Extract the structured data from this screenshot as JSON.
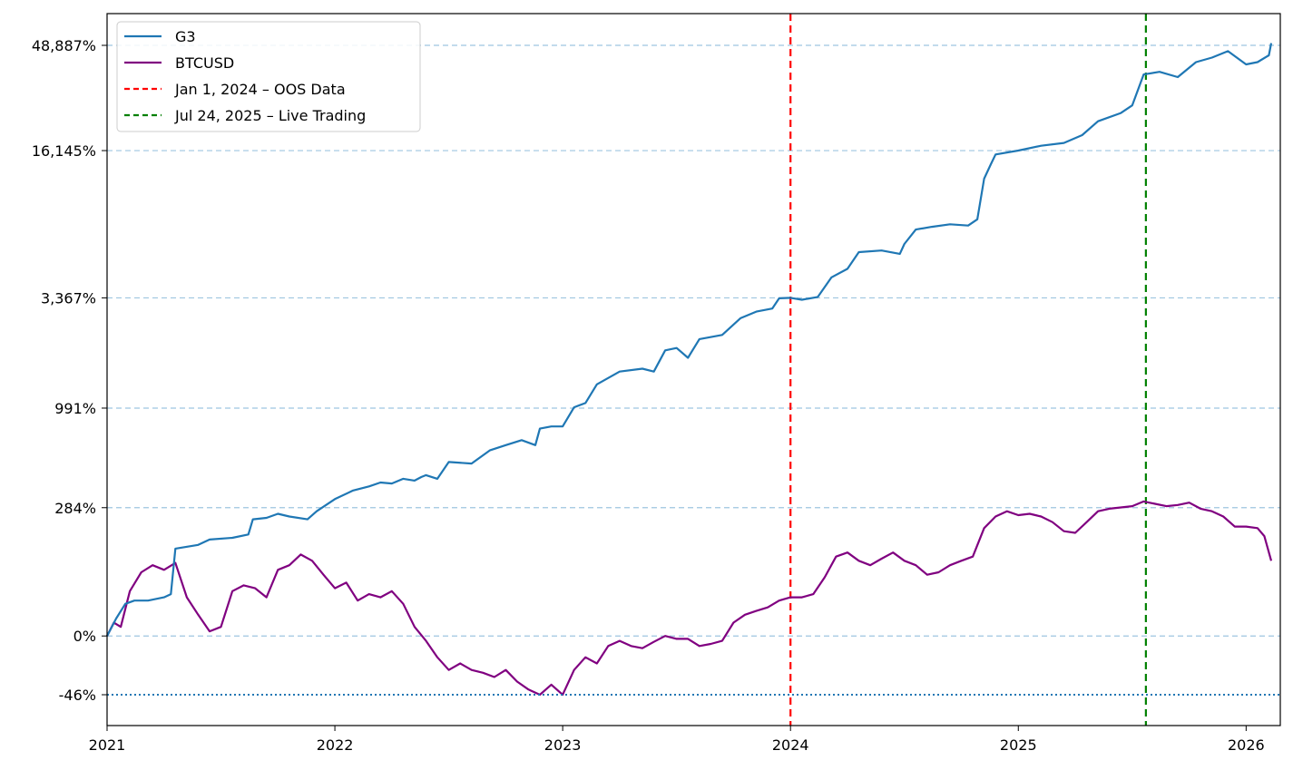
{
  "chart_data": {
    "type": "line",
    "title": "",
    "xlabel": "",
    "ylabel": "",
    "y_scale": "log(1 + return)",
    "x_range": [
      2021.0,
      2026.15
    ],
    "y_range_pct": [
      -55,
      80000
    ],
    "x_ticks": [
      {
        "value": 2021,
        "label": "2021"
      },
      {
        "value": 2022,
        "label": "2022"
      },
      {
        "value": 2023,
        "label": "2023"
      },
      {
        "value": 2024,
        "label": "2024"
      },
      {
        "value": 2025,
        "label": "2025"
      },
      {
        "value": 2026,
        "label": "2026"
      }
    ],
    "y_ticks": [
      {
        "value": 48887,
        "label": "48,887%"
      },
      {
        "value": 16145,
        "label": "16,145%"
      },
      {
        "value": 3367,
        "label": "3,367%"
      },
      {
        "value": 991,
        "label": "991%"
      },
      {
        "value": 284,
        "label": "284%"
      },
      {
        "value": 0,
        "label": "0%"
      },
      {
        "value": -46,
        "label": "-46%"
      }
    ],
    "horizontal_reference": {
      "value": -46,
      "style": "dotted",
      "color": "#1f77b4"
    },
    "vertical_markers": [
      {
        "x": 2024.0,
        "label": "Jan 1, 2024 – OOS Data",
        "color": "#ff0000",
        "style": "dashed"
      },
      {
        "x": 2025.56,
        "label": "Jul 24, 2025 – Live Trading",
        "color": "#008000",
        "style": "dashed"
      }
    ],
    "legend_position": "top-left",
    "series": [
      {
        "name": "G3",
        "color": "#1f77b4",
        "points": [
          [
            2021.0,
            0
          ],
          [
            2021.04,
            20
          ],
          [
            2021.08,
            40
          ],
          [
            2021.12,
            45
          ],
          [
            2021.18,
            45
          ],
          [
            2021.25,
            50
          ],
          [
            2021.28,
            55
          ],
          [
            2021.3,
            150
          ],
          [
            2021.4,
            160
          ],
          [
            2021.45,
            175
          ],
          [
            2021.55,
            180
          ],
          [
            2021.62,
            190
          ],
          [
            2021.64,
            240
          ],
          [
            2021.7,
            245
          ],
          [
            2021.75,
            260
          ],
          [
            2021.8,
            250
          ],
          [
            2021.88,
            240
          ],
          [
            2021.92,
            270
          ],
          [
            2022.0,
            320
          ],
          [
            2022.08,
            360
          ],
          [
            2022.15,
            380
          ],
          [
            2022.2,
            400
          ],
          [
            2022.25,
            395
          ],
          [
            2022.3,
            420
          ],
          [
            2022.35,
            410
          ],
          [
            2022.38,
            430
          ],
          [
            2022.4,
            440
          ],
          [
            2022.45,
            420
          ],
          [
            2022.5,
            520
          ],
          [
            2022.6,
            510
          ],
          [
            2022.68,
            600
          ],
          [
            2022.75,
            640
          ],
          [
            2022.82,
            680
          ],
          [
            2022.88,
            640
          ],
          [
            2022.9,
            780
          ],
          [
            2022.95,
            800
          ],
          [
            2023.0,
            800
          ],
          [
            2023.05,
            1000
          ],
          [
            2023.1,
            1050
          ],
          [
            2023.15,
            1300
          ],
          [
            2023.25,
            1500
          ],
          [
            2023.35,
            1550
          ],
          [
            2023.4,
            1500
          ],
          [
            2023.45,
            1900
          ],
          [
            2023.5,
            1950
          ],
          [
            2023.55,
            1750
          ],
          [
            2023.6,
            2150
          ],
          [
            2023.7,
            2250
          ],
          [
            2023.78,
            2700
          ],
          [
            2023.85,
            2900
          ],
          [
            2023.92,
            3000
          ],
          [
            2023.95,
            3350
          ],
          [
            2024.0,
            3367
          ],
          [
            2024.05,
            3300
          ],
          [
            2024.12,
            3400
          ],
          [
            2024.18,
            4200
          ],
          [
            2024.25,
            4600
          ],
          [
            2024.3,
            5500
          ],
          [
            2024.4,
            5600
          ],
          [
            2024.48,
            5400
          ],
          [
            2024.5,
            6000
          ],
          [
            2024.55,
            7000
          ],
          [
            2024.62,
            7200
          ],
          [
            2024.7,
            7400
          ],
          [
            2024.78,
            7300
          ],
          [
            2024.82,
            7800
          ],
          [
            2024.85,
            12000
          ],
          [
            2024.88,
            14000
          ],
          [
            2024.9,
            15500
          ],
          [
            2025.0,
            16145
          ],
          [
            2025.1,
            17000
          ],
          [
            2025.2,
            17500
          ],
          [
            2025.28,
            19000
          ],
          [
            2025.35,
            22000
          ],
          [
            2025.45,
            24000
          ],
          [
            2025.5,
            26000
          ],
          [
            2025.55,
            36000
          ],
          [
            2025.62,
            37000
          ],
          [
            2025.7,
            35000
          ],
          [
            2025.78,
            41000
          ],
          [
            2025.85,
            43000
          ],
          [
            2025.92,
            46000
          ],
          [
            2026.0,
            40000
          ],
          [
            2026.05,
            41000
          ],
          [
            2026.1,
            44000
          ],
          [
            2026.11,
            50000
          ]
        ]
      },
      {
        "name": "BTCUSD",
        "color": "#800080",
        "points": [
          [
            2021.0,
            0
          ],
          [
            2021.03,
            15
          ],
          [
            2021.06,
            10
          ],
          [
            2021.1,
            60
          ],
          [
            2021.15,
            95
          ],
          [
            2021.2,
            110
          ],
          [
            2021.25,
            100
          ],
          [
            2021.3,
            115
          ],
          [
            2021.35,
            50
          ],
          [
            2021.4,
            25
          ],
          [
            2021.45,
            5
          ],
          [
            2021.5,
            10
          ],
          [
            2021.55,
            60
          ],
          [
            2021.6,
            70
          ],
          [
            2021.65,
            65
          ],
          [
            2021.7,
            50
          ],
          [
            2021.75,
            100
          ],
          [
            2021.8,
            110
          ],
          [
            2021.85,
            135
          ],
          [
            2021.9,
            120
          ],
          [
            2021.95,
            90
          ],
          [
            2022.0,
            65
          ],
          [
            2022.05,
            75
          ],
          [
            2022.1,
            45
          ],
          [
            2022.15,
            55
          ],
          [
            2022.2,
            50
          ],
          [
            2022.25,
            60
          ],
          [
            2022.3,
            40
          ],
          [
            2022.35,
            10
          ],
          [
            2022.4,
            -5
          ],
          [
            2022.45,
            -20
          ],
          [
            2022.5,
            -30
          ],
          [
            2022.55,
            -25
          ],
          [
            2022.6,
            -30
          ],
          [
            2022.65,
            -32
          ],
          [
            2022.7,
            -35
          ],
          [
            2022.75,
            -30
          ],
          [
            2022.8,
            -38
          ],
          [
            2022.85,
            -43
          ],
          [
            2022.9,
            -46
          ],
          [
            2022.95,
            -40
          ],
          [
            2023.0,
            -46
          ],
          [
            2023.05,
            -30
          ],
          [
            2023.1,
            -20
          ],
          [
            2023.15,
            -25
          ],
          [
            2023.2,
            -10
          ],
          [
            2023.25,
            -5
          ],
          [
            2023.3,
            -10
          ],
          [
            2023.35,
            -12
          ],
          [
            2023.4,
            -6
          ],
          [
            2023.45,
            0
          ],
          [
            2023.5,
            -3
          ],
          [
            2023.55,
            -3
          ],
          [
            2023.6,
            -10
          ],
          [
            2023.65,
            -8
          ],
          [
            2023.7,
            -5
          ],
          [
            2023.75,
            15
          ],
          [
            2023.8,
            25
          ],
          [
            2023.85,
            30
          ],
          [
            2023.9,
            35
          ],
          [
            2023.95,
            45
          ],
          [
            2024.0,
            50
          ],
          [
            2024.05,
            50
          ],
          [
            2024.1,
            55
          ],
          [
            2024.15,
            85
          ],
          [
            2024.2,
            130
          ],
          [
            2024.25,
            140
          ],
          [
            2024.3,
            120
          ],
          [
            2024.35,
            110
          ],
          [
            2024.4,
            125
          ],
          [
            2024.45,
            140
          ],
          [
            2024.5,
            120
          ],
          [
            2024.55,
            110
          ],
          [
            2024.6,
            90
          ],
          [
            2024.65,
            95
          ],
          [
            2024.7,
            110
          ],
          [
            2024.75,
            120
          ],
          [
            2024.8,
            130
          ],
          [
            2024.85,
            210
          ],
          [
            2024.9,
            250
          ],
          [
            2024.95,
            270
          ],
          [
            2025.0,
            255
          ],
          [
            2025.05,
            260
          ],
          [
            2025.1,
            250
          ],
          [
            2025.15,
            230
          ],
          [
            2025.2,
            200
          ],
          [
            2025.25,
            195
          ],
          [
            2025.3,
            230
          ],
          [
            2025.35,
            270
          ],
          [
            2025.4,
            280
          ],
          [
            2025.45,
            285
          ],
          [
            2025.5,
            290
          ],
          [
            2025.55,
            310
          ],
          [
            2025.6,
            300
          ],
          [
            2025.65,
            290
          ],
          [
            2025.7,
            295
          ],
          [
            2025.75,
            305
          ],
          [
            2025.8,
            280
          ],
          [
            2025.85,
            270
          ],
          [
            2025.9,
            250
          ],
          [
            2025.95,
            215
          ],
          [
            2026.0,
            215
          ],
          [
            2026.05,
            210
          ],
          [
            2026.08,
            185
          ],
          [
            2026.11,
            120
          ]
        ]
      }
    ]
  }
}
